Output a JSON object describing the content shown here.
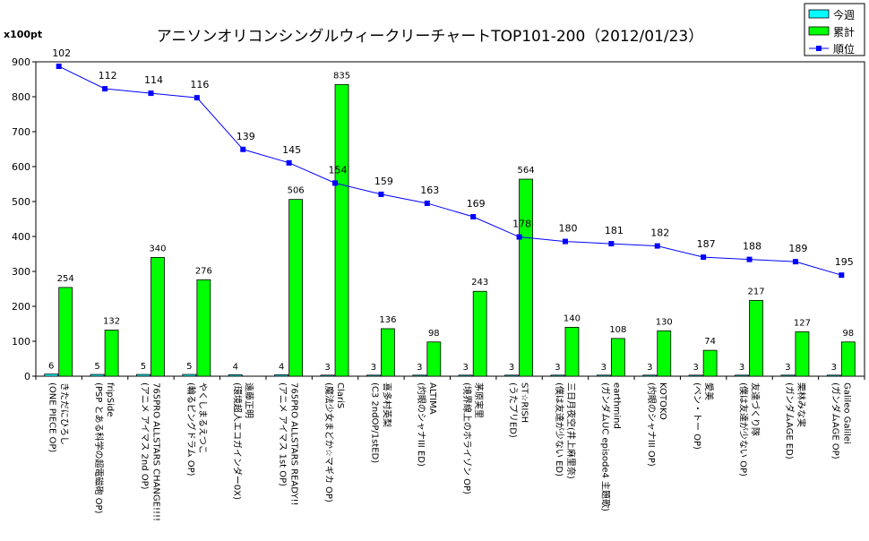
{
  "chart_data": {
    "type": "bar",
    "title": "アニソンオリコンシングルウィークリーチャートTOP101-200（2012/01/23）",
    "ylabel": "x100pt",
    "ylim": [
      0,
      900
    ],
    "yticks": [
      0,
      100,
      200,
      300,
      400,
      500,
      600,
      700,
      800,
      900
    ],
    "secondary_axis": {
      "reversed": true,
      "range": [
        100,
        240
      ],
      "visible": false
    },
    "legend_position": "top-right",
    "grid": false,
    "categories": [
      [
        "きただにひろし",
        "(ONE PIECE OP)"
      ],
      [
        "fripSide",
        "(PSP とある科学の超電磁砲 OP)"
      ],
      [
        "765PRO ALLSTARS CHANGE!!!!",
        "(アニメ アイマス 2nd OP)"
      ],
      [
        "やくしまるえつこ",
        "(輪るピングドラム OP)"
      ],
      [
        "遠藤正明",
        "(環境超人エコガインダー0X)"
      ],
      [
        "765PRO ALLSTARS READY!!",
        "(アニメ アイマス 1st OP)"
      ],
      [
        "ClariS",
        "(魔法少女まどか☆マギカ OP)"
      ],
      [
        "喜多村英梨",
        "(C3 2ndOP/1stED)"
      ],
      [
        "ALTIMA",
        "(灼眼のシャナIII ED)"
      ],
      [
        "茅原実里",
        "(境界線上のホライゾン OP)"
      ],
      [
        "ST☆RISH",
        "(うたプリED)"
      ],
      [
        "三日月夜空(井上麻里奈)",
        "(僕は友達が少ない ED)"
      ],
      [
        "earthmind",
        "(ガンダムUC episode4 主題歌)"
      ],
      [
        "KOTOKO",
        "(灼眼のシャナIII OP)"
      ],
      [
        "愛美",
        "(ベン・トー OP)"
      ],
      [
        "友達づくり隊",
        "(僕は友達が少ない OP)"
      ],
      [
        "栗林みな実",
        "(ガンダムAGE ED)"
      ],
      [
        "Galileo Galilei",
        "(ガンダムAGE OP)"
      ]
    ],
    "series": [
      {
        "name": "今週",
        "type": "bar",
        "color": "#00ffff",
        "values": [
          6,
          5,
          5,
          5,
          4,
          4,
          3,
          3,
          3,
          3,
          3,
          3,
          3,
          3,
          3,
          3,
          3,
          3
        ]
      },
      {
        "name": "累計",
        "type": "bar",
        "color": "#00ff00",
        "values": [
          254,
          132,
          340,
          276,
          null,
          506,
          835,
          136,
          98,
          243,
          564,
          140,
          108,
          130,
          74,
          217,
          127,
          98
        ]
      },
      {
        "name": "順位",
        "type": "line",
        "axis": "secondary",
        "color": "#0000ff",
        "values": [
          102,
          112,
          114,
          116,
          139,
          145,
          154,
          159,
          163,
          169,
          178,
          180,
          181,
          182,
          187,
          188,
          189,
          195
        ]
      }
    ]
  }
}
